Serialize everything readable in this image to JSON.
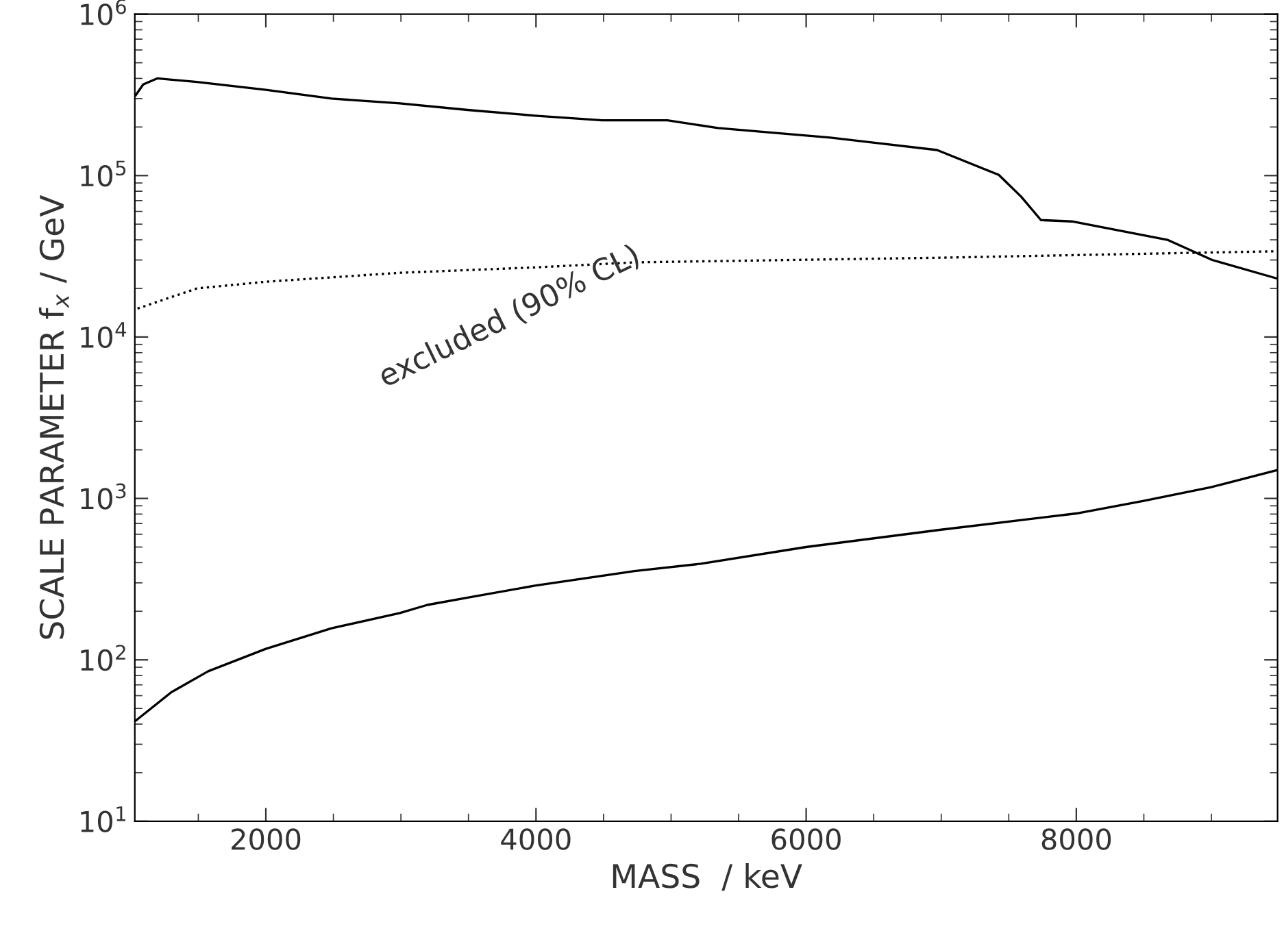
{
  "chart_data": {
    "type": "line",
    "xlabel": "MASS  / keV",
    "ylabel": "SCALE PARAMETER f$_{x}$ / GeV",
    "log": "y",
    "xlim": [
      1030,
      9490
    ],
    "xticks": [
      2000,
      4000,
      6000,
      8000
    ],
    "ylim": [
      10,
      1000000
    ],
    "yticks": [
      {
        "value": 10,
        "label": "10$^{1}$"
      },
      {
        "value": 100,
        "label": "10$^{2}$"
      },
      {
        "value": 1000,
        "label": "10$^{3}$"
      },
      {
        "value": 10000,
        "label": "10$^{4}$"
      },
      {
        "value": 100000,
        "label": "10$^{5}$"
      },
      {
        "value": 1000000,
        "label": "10$^{6}$"
      }
    ],
    "grid": false,
    "legend": false,
    "series": [
      {
        "color": "#000000",
        "line_style": "solid",
        "x": [
          1037,
          1092,
          1196,
          1490,
          2000,
          2486,
          2992,
          3494,
          3992,
          4490,
          4973,
          5347,
          6179,
          6969,
          7426,
          7592,
          7738,
          7967,
          8674,
          9006,
          9489
        ],
        "values": [
          315000,
          367000,
          400000,
          380000,
          340000,
          300000,
          280000,
          255000,
          235000,
          220000,
          220000,
          197000,
          172000,
          144000,
          101000,
          74000,
          53000,
          52000,
          40000,
          30000,
          23000
        ]
      },
      {
        "color": "#000000",
        "line_style": "dotted",
        "x": [
          1050,
          1490,
          2000,
          2996,
          3999,
          4729,
          6998,
          8674,
          9489
        ],
        "values": [
          15000,
          20000,
          22000,
          25000,
          27000,
          29000,
          31000,
          33000,
          34000
        ]
      },
      {
        "color": "#000000",
        "line_style": "solid",
        "x": [
          1037,
          1300,
          1573,
          2000,
          2486,
          2992,
          3196,
          3494,
          3992,
          4729,
          5222,
          6000,
          6998,
          8000,
          8499,
          8998,
          9489
        ],
        "values": [
          42,
          63,
          85,
          117,
          157,
          195,
          219,
          243,
          288,
          355,
          394,
          500,
          640,
          807,
          966,
          1175,
          1500
        ]
      }
    ],
    "annotations": [
      "excluded (90% CL)"
    ]
  }
}
